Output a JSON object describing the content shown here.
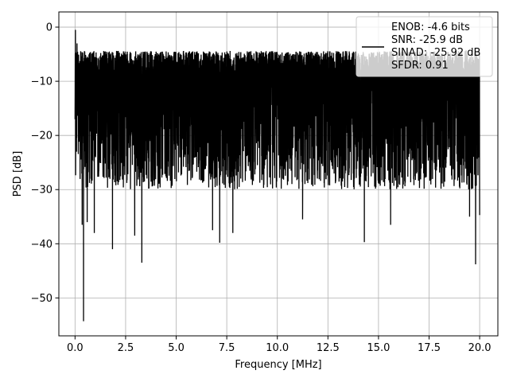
{
  "chart_data": {
    "type": "line",
    "title": "",
    "xlabel": "Frequency [MHz]",
    "ylabel": "PSD [dB]",
    "xlim": [
      -0.8,
      20.9
    ],
    "ylim": [
      -57,
      2.8
    ],
    "xticks": [
      0.0,
      2.5,
      5.0,
      7.5,
      10.0,
      12.5,
      15.0,
      17.5,
      20.0
    ],
    "xtick_labels": [
      "0.0",
      "2.5",
      "5.0",
      "7.5",
      "10.0",
      "12.5",
      "15.0",
      "17.5",
      "20.0"
    ],
    "yticks": [
      0,
      -10,
      -20,
      -30,
      -40,
      -50
    ],
    "ytick_labels": [
      "0",
      "−10",
      "−20",
      "−30",
      "−40",
      "−50"
    ],
    "grid": true,
    "line_color": "#000000",
    "grid_color": "#b0b0b0",
    "legend": {
      "placement": "top-right",
      "entries": [
        "ENOB: -4.6 bits",
        "SNR: -25.9 dB",
        "SINAD: -25.92 dB",
        "SFDR: 0.91"
      ]
    },
    "series": [
      {
        "x_range": [
          0.0,
          20.0
        ],
        "envelope_upper_approx": -4,
        "envelope_lower_approx": -30,
        "band_upper_approx": -7,
        "band_lower_approx": -25,
        "start_value": -17,
        "peaks": [
          {
            "x": 0.02,
            "y": -0.5
          },
          {
            "x": 0.05,
            "y": -5
          },
          {
            "x": 0.1,
            "y": -3
          }
        ],
        "dips": [
          {
            "x": 0.42,
            "y": -54.3
          },
          {
            "x": 0.35,
            "y": -36.5
          },
          {
            "x": 0.6,
            "y": -36
          },
          {
            "x": 0.95,
            "y": -38
          },
          {
            "x": 1.85,
            "y": -41
          },
          {
            "x": 2.95,
            "y": -38.5
          },
          {
            "x": 3.3,
            "y": -43.5
          },
          {
            "x": 6.8,
            "y": -37.5
          },
          {
            "x": 7.15,
            "y": -39.8
          },
          {
            "x": 7.8,
            "y": -38
          },
          {
            "x": 11.25,
            "y": -35.5
          },
          {
            "x": 14.3,
            "y": -39.7
          },
          {
            "x": 15.6,
            "y": -36.5
          },
          {
            "x": 19.5,
            "y": -35
          },
          {
            "x": 19.8,
            "y": -43.8
          },
          {
            "x": 20.0,
            "y": -34.7
          }
        ]
      }
    ]
  }
}
